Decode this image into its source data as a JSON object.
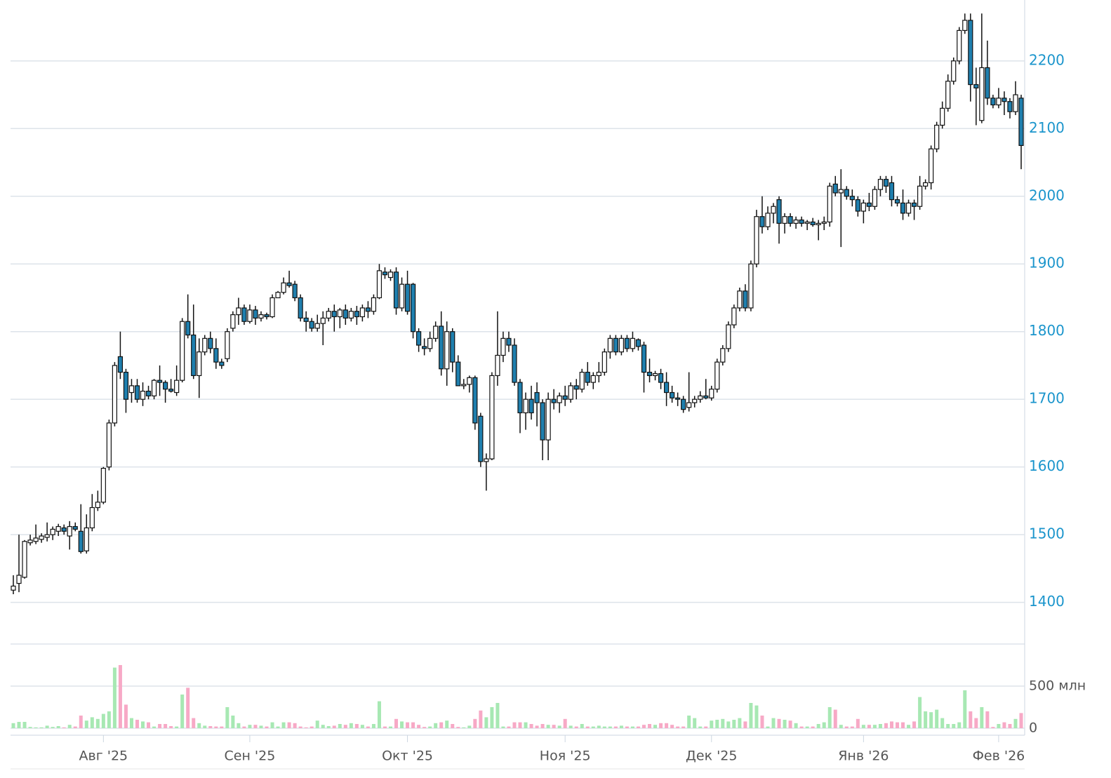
{
  "chart_data": {
    "type": "candlestick",
    "categories": [
      null,
      null,
      null,
      null,
      null,
      null,
      null,
      null,
      null,
      null,
      null,
      null,
      null,
      null,
      null,
      null,
      "Авг '25",
      null,
      null,
      null,
      null,
      null,
      null,
      null,
      null,
      null,
      null,
      null,
      null,
      null,
      null,
      null,
      null,
      null,
      null,
      null,
      null,
      null,
      null,
      null,
      null,
      null,
      "Сен '25",
      null,
      null,
      null,
      null,
      null,
      null,
      null,
      null,
      null,
      null,
      null,
      null,
      null,
      null,
      null,
      null,
      null,
      null,
      null,
      null,
      null,
      null,
      null,
      null,
      null,
      null,
      null,
      "Окт '25",
      null,
      null,
      null,
      null,
      null,
      null,
      null,
      null,
      null,
      null,
      null,
      null,
      null,
      null,
      null,
      null,
      null,
      null,
      null,
      null,
      null,
      null,
      null,
      null,
      null,
      null,
      null,
      "Ноя '25",
      null,
      null,
      null,
      null,
      null,
      null,
      null,
      null,
      null,
      null,
      null,
      null,
      null,
      null,
      null,
      null,
      null,
      null,
      null,
      null,
      null,
      null,
      null,
      null,
      null,
      "Дек '25",
      null,
      null,
      null,
      null,
      null,
      null,
      null,
      null,
      null,
      null,
      null,
      null,
      null,
      null,
      null,
      null,
      null,
      null,
      null,
      null,
      null,
      null,
      null,
      null,
      null,
      null,
      "Янв '26",
      null,
      null,
      null,
      null,
      null,
      null,
      null,
      null,
      null,
      null,
      null,
      null,
      null,
      null,
      null,
      null,
      null,
      null,
      null,
      null,
      null,
      null,
      null,
      "Фев '26",
      null,
      null,
      null,
      null
    ],
    "ohlc": [
      [
        1418,
        1440,
        1412,
        1424
      ],
      [
        1428,
        1500,
        1415,
        1440
      ],
      [
        1437,
        1492,
        1435,
        1490
      ],
      [
        1488,
        1500,
        1484,
        1492
      ],
      [
        1490,
        1515,
        1486,
        1495
      ],
      [
        1493,
        1502,
        1488,
        1498
      ],
      [
        1496,
        1518,
        1490,
        1500
      ],
      [
        1500,
        1512,
        1492,
        1508
      ],
      [
        1505,
        1516,
        1498,
        1512
      ],
      [
        1510,
        1515,
        1500,
        1505
      ],
      [
        1498,
        1520,
        1478,
        1512
      ],
      [
        1512,
        1518,
        1505,
        1508
      ],
      [
        1505,
        1545,
        1472,
        1475
      ],
      [
        1476,
        1530,
        1472,
        1510
      ],
      [
        1510,
        1560,
        1505,
        1540
      ],
      [
        1540,
        1565,
        1535,
        1548
      ],
      [
        1548,
        1600,
        1545,
        1598
      ],
      [
        1600,
        1670,
        1595,
        1665
      ],
      [
        1665,
        1755,
        1660,
        1750
      ],
      [
        1763,
        1800,
        1730,
        1740
      ],
      [
        1740,
        1745,
        1680,
        1700
      ],
      [
        1710,
        1730,
        1695,
        1720
      ],
      [
        1720,
        1730,
        1695,
        1700
      ],
      [
        1700,
        1725,
        1690,
        1712
      ],
      [
        1712,
        1720,
        1700,
        1705
      ],
      [
        1705,
        1730,
        1700,
        1728
      ],
      [
        1728,
        1750,
        1705,
        1725
      ],
      [
        1725,
        1728,
        1695,
        1715
      ],
      [
        1715,
        1730,
        1710,
        1712
      ],
      [
        1710,
        1750,
        1705,
        1728
      ],
      [
        1728,
        1820,
        1725,
        1815
      ],
      [
        1815,
        1855,
        1790,
        1795
      ],
      [
        1795,
        1840,
        1730,
        1735
      ],
      [
        1735,
        1790,
        1702,
        1770
      ],
      [
        1770,
        1795,
        1765,
        1790
      ],
      [
        1790,
        1800,
        1768,
        1775
      ],
      [
        1775,
        1790,
        1745,
        1755
      ],
      [
        1755,
        1760,
        1745,
        1750
      ],
      [
        1760,
        1805,
        1755,
        1800
      ],
      [
        1805,
        1830,
        1800,
        1825
      ],
      [
        1825,
        1850,
        1810,
        1835
      ],
      [
        1835,
        1840,
        1810,
        1815
      ],
      [
        1815,
        1840,
        1812,
        1832
      ],
      [
        1832,
        1838,
        1810,
        1820
      ],
      [
        1820,
        1830,
        1815,
        1825
      ],
      [
        1825,
        1828,
        1818,
        1822
      ],
      [
        1822,
        1855,
        1820,
        1850
      ],
      [
        1850,
        1860,
        1852,
        1858
      ],
      [
        1858,
        1880,
        1855,
        1872
      ],
      [
        1872,
        1890,
        1865,
        1868
      ],
      [
        1870,
        1875,
        1845,
        1850
      ],
      [
        1850,
        1855,
        1815,
        1820
      ],
      [
        1820,
        1830,
        1800,
        1815
      ],
      [
        1815,
        1820,
        1800,
        1805
      ],
      [
        1805,
        1825,
        1800,
        1812
      ],
      [
        1812,
        1830,
        1780,
        1820
      ],
      [
        1820,
        1835,
        1815,
        1830
      ],
      [
        1830,
        1840,
        1800,
        1822
      ],
      [
        1822,
        1835,
        1805,
        1832
      ],
      [
        1832,
        1840,
        1810,
        1820
      ],
      [
        1820,
        1835,
        1815,
        1830
      ],
      [
        1830,
        1838,
        1810,
        1822
      ],
      [
        1822,
        1840,
        1815,
        1835
      ],
      [
        1835,
        1845,
        1820,
        1830
      ],
      [
        1830,
        1855,
        1825,
        1850
      ],
      [
        1850,
        1900,
        1848,
        1890
      ],
      [
        1888,
        1895,
        1878,
        1884
      ],
      [
        1880,
        1892,
        1875,
        1888
      ],
      [
        1888,
        1895,
        1825,
        1835
      ],
      [
        1835,
        1880,
        1830,
        1870
      ],
      [
        1870,
        1890,
        1825,
        1830
      ],
      [
        1870,
        1872,
        1790,
        1800
      ],
      [
        1800,
        1805,
        1770,
        1780
      ],
      [
        1778,
        1790,
        1765,
        1775
      ],
      [
        1775,
        1800,
        1770,
        1790
      ],
      [
        1790,
        1815,
        1785,
        1808
      ],
      [
        1808,
        1830,
        1735,
        1745
      ],
      [
        1745,
        1815,
        1720,
        1800
      ],
      [
        1800,
        1805,
        1740,
        1755
      ],
      [
        1755,
        1765,
        1720,
        1720
      ],
      [
        1720,
        1730,
        1715,
        1722
      ],
      [
        1722,
        1735,
        1710,
        1732
      ],
      [
        1732,
        1735,
        1655,
        1665
      ],
      [
        1675,
        1680,
        1600,
        1608
      ],
      [
        1608,
        1620,
        1565,
        1612
      ],
      [
        1612,
        1740,
        1610,
        1735
      ],
      [
        1735,
        1830,
        1720,
        1765
      ],
      [
        1765,
        1800,
        1755,
        1790
      ],
      [
        1790,
        1800,
        1770,
        1780
      ],
      [
        1780,
        1790,
        1720,
        1725
      ],
      [
        1725,
        1730,
        1650,
        1680
      ],
      [
        1680,
        1710,
        1655,
        1700
      ],
      [
        1700,
        1720,
        1670,
        1680
      ],
      [
        1710,
        1725,
        1660,
        1695
      ],
      [
        1695,
        1700,
        1610,
        1640
      ],
      [
        1640,
        1710,
        1610,
        1700
      ],
      [
        1700,
        1715,
        1685,
        1695
      ],
      [
        1695,
        1710,
        1680,
        1705
      ],
      [
        1705,
        1720,
        1690,
        1700
      ],
      [
        1700,
        1725,
        1695,
        1720
      ],
      [
        1720,
        1730,
        1700,
        1715
      ],
      [
        1715,
        1745,
        1710,
        1740
      ],
      [
        1740,
        1755,
        1720,
        1725
      ],
      [
        1725,
        1740,
        1715,
        1735
      ],
      [
        1735,
        1755,
        1725,
        1740
      ],
      [
        1740,
        1775,
        1735,
        1770
      ],
      [
        1770,
        1795,
        1760,
        1790
      ],
      [
        1790,
        1795,
        1765,
        1770
      ],
      [
        1770,
        1795,
        1765,
        1790
      ],
      [
        1790,
        1795,
        1770,
        1775
      ],
      [
        1775,
        1800,
        1770,
        1790
      ],
      [
        1788,
        1790,
        1772,
        1778
      ],
      [
        1780,
        1785,
        1710,
        1740
      ],
      [
        1740,
        1760,
        1725,
        1735
      ],
      [
        1735,
        1742,
        1728,
        1738
      ],
      [
        1738,
        1745,
        1715,
        1725
      ],
      [
        1725,
        1740,
        1690,
        1710
      ],
      [
        1710,
        1720,
        1695,
        1702
      ],
      [
        1702,
        1710,
        1690,
        1700
      ],
      [
        1700,
        1705,
        1680,
        1685
      ],
      [
        1688,
        1740,
        1682,
        1695
      ],
      [
        1695,
        1705,
        1688,
        1700
      ],
      [
        1700,
        1712,
        1695,
        1705
      ],
      [
        1705,
        1730,
        1700,
        1702
      ],
      [
        1702,
        1720,
        1698,
        1715
      ],
      [
        1715,
        1760,
        1710,
        1755
      ],
      [
        1755,
        1780,
        1750,
        1775
      ],
      [
        1775,
        1815,
        1770,
        1810
      ],
      [
        1810,
        1840,
        1805,
        1835
      ],
      [
        1835,
        1865,
        1830,
        1860
      ],
      [
        1860,
        1870,
        1830,
        1835
      ],
      [
        1835,
        1905,
        1830,
        1900
      ],
      [
        1900,
        1980,
        1895,
        1970
      ],
      [
        1970,
        2000,
        1945,
        1955
      ],
      [
        1955,
        1985,
        1950,
        1975
      ],
      [
        1975,
        1990,
        1960,
        1985
      ],
      [
        1995,
        2000,
        1930,
        1960
      ],
      [
        1960,
        1975,
        1945,
        1970
      ],
      [
        1970,
        1975,
        1955,
        1960
      ],
      [
        1960,
        1970,
        1952,
        1965
      ],
      [
        1965,
        1970,
        1955,
        1960
      ],
      [
        1960,
        1965,
        1950,
        1962
      ],
      [
        1962,
        1968,
        1955,
        1958
      ],
      [
        1958,
        1965,
        1935,
        1960
      ],
      [
        1960,
        1970,
        1950,
        1962
      ],
      [
        1962,
        2020,
        1955,
        2015
      ],
      [
        2018,
        2030,
        2000,
        2005
      ],
      [
        2005,
        2040,
        1925,
        2010
      ],
      [
        2010,
        2015,
        1995,
        2000
      ],
      [
        2000,
        2010,
        1985,
        1995
      ],
      [
        1995,
        2000,
        1970,
        1978
      ],
      [
        1978,
        1995,
        1960,
        1990
      ],
      [
        1990,
        2005,
        1978,
        1985
      ],
      [
        1985,
        2015,
        1980,
        2010
      ],
      [
        2010,
        2030,
        2000,
        2025
      ],
      [
        2025,
        2030,
        2005,
        2015
      ],
      [
        2020,
        2030,
        1985,
        1995
      ],
      [
        1995,
        2000,
        1985,
        1990
      ],
      [
        1990,
        2010,
        1965,
        1975
      ],
      [
        1975,
        1995,
        1970,
        1990
      ],
      [
        1990,
        1995,
        1965,
        1985
      ],
      [
        1985,
        2030,
        1980,
        2015
      ],
      [
        2015,
        2025,
        2010,
        2020
      ],
      [
        2020,
        2075,
        2010,
        2070
      ],
      [
        2070,
        2110,
        2065,
        2105
      ],
      [
        2105,
        2140,
        2100,
        2130
      ],
      [
        2130,
        2180,
        2125,
        2170
      ],
      [
        2170,
        2205,
        2165,
        2200
      ],
      [
        2200,
        2250,
        2195,
        2245
      ],
      [
        2245,
        2270,
        2240,
        2260
      ],
      [
        2260,
        2270,
        2140,
        2165
      ],
      [
        2165,
        2190,
        2105,
        2160
      ],
      [
        2112,
        2270,
        2108,
        2190
      ],
      [
        2190,
        2230,
        2135,
        2145
      ],
      [
        2145,
        2150,
        2130,
        2135
      ],
      [
        2135,
        2160,
        2130,
        2145
      ],
      [
        2145,
        2155,
        2120,
        2140
      ],
      [
        2140,
        2145,
        2115,
        2125
      ],
      [
        2125,
        2170,
        2120,
        2150
      ],
      [
        2145,
        2150,
        2040,
        2075
      ]
    ],
    "volume": [
      60,
      75,
      75,
      15,
      10,
      10,
      30,
      15,
      25,
      10,
      40,
      20,
      150,
      90,
      130,
      110,
      170,
      200,
      720,
      750,
      280,
      120,
      100,
      80,
      70,
      20,
      50,
      50,
      25,
      20,
      400,
      480,
      120,
      60,
      30,
      25,
      20,
      20,
      250,
      150,
      60,
      20,
      40,
      40,
      30,
      20,
      70,
      20,
      70,
      70,
      60,
      20,
      10,
      20,
      90,
      40,
      25,
      30,
      50,
      40,
      60,
      50,
      40,
      20,
      50,
      320,
      20,
      20,
      110,
      80,
      70,
      70,
      40,
      15,
      20,
      60,
      70,
      90,
      50,
      15,
      10,
      30,
      110,
      210,
      130,
      250,
      300,
      20,
      20,
      70,
      70,
      70,
      50,
      30,
      50,
      40,
      40,
      30,
      110,
      30,
      20,
      50,
      20,
      20,
      30,
      20,
      20,
      20,
      30,
      20,
      20,
      20,
      40,
      50,
      40,
      60,
      60,
      40,
      20,
      20,
      150,
      120,
      20,
      20,
      90,
      100,
      110,
      80,
      100,
      120,
      80,
      300,
      270,
      150,
      20,
      120,
      110,
      100,
      90,
      60,
      20,
      20,
      20,
      50,
      70,
      250,
      220,
      40,
      20,
      20,
      110,
      40,
      40,
      40,
      50,
      60,
      80,
      70,
      70,
      40,
      80,
      370,
      200,
      190,
      220,
      120,
      50,
      50,
      70,
      450,
      200,
      120,
      250,
      200,
      15,
      50,
      70,
      50,
      110,
      180
    ],
    "ylim": [
      1355,
      2290
    ],
    "yticks": [
      1400,
      1500,
      1600,
      1700,
      1800,
      1900,
      2000,
      2100,
      2200
    ],
    "volume_ylim": [
      0,
      1000
    ],
    "volume_yticks": [
      0,
      {
        "value": 500,
        "label": "500 млн"
      }
    ],
    "grid": true,
    "up_color": "#ffffff",
    "down_color": "#1f7fae",
    "volume_up_color": "#a7e8b3",
    "volume_down_color": "#f7a9c6",
    "axis_label_color": "#1b95cc"
  }
}
